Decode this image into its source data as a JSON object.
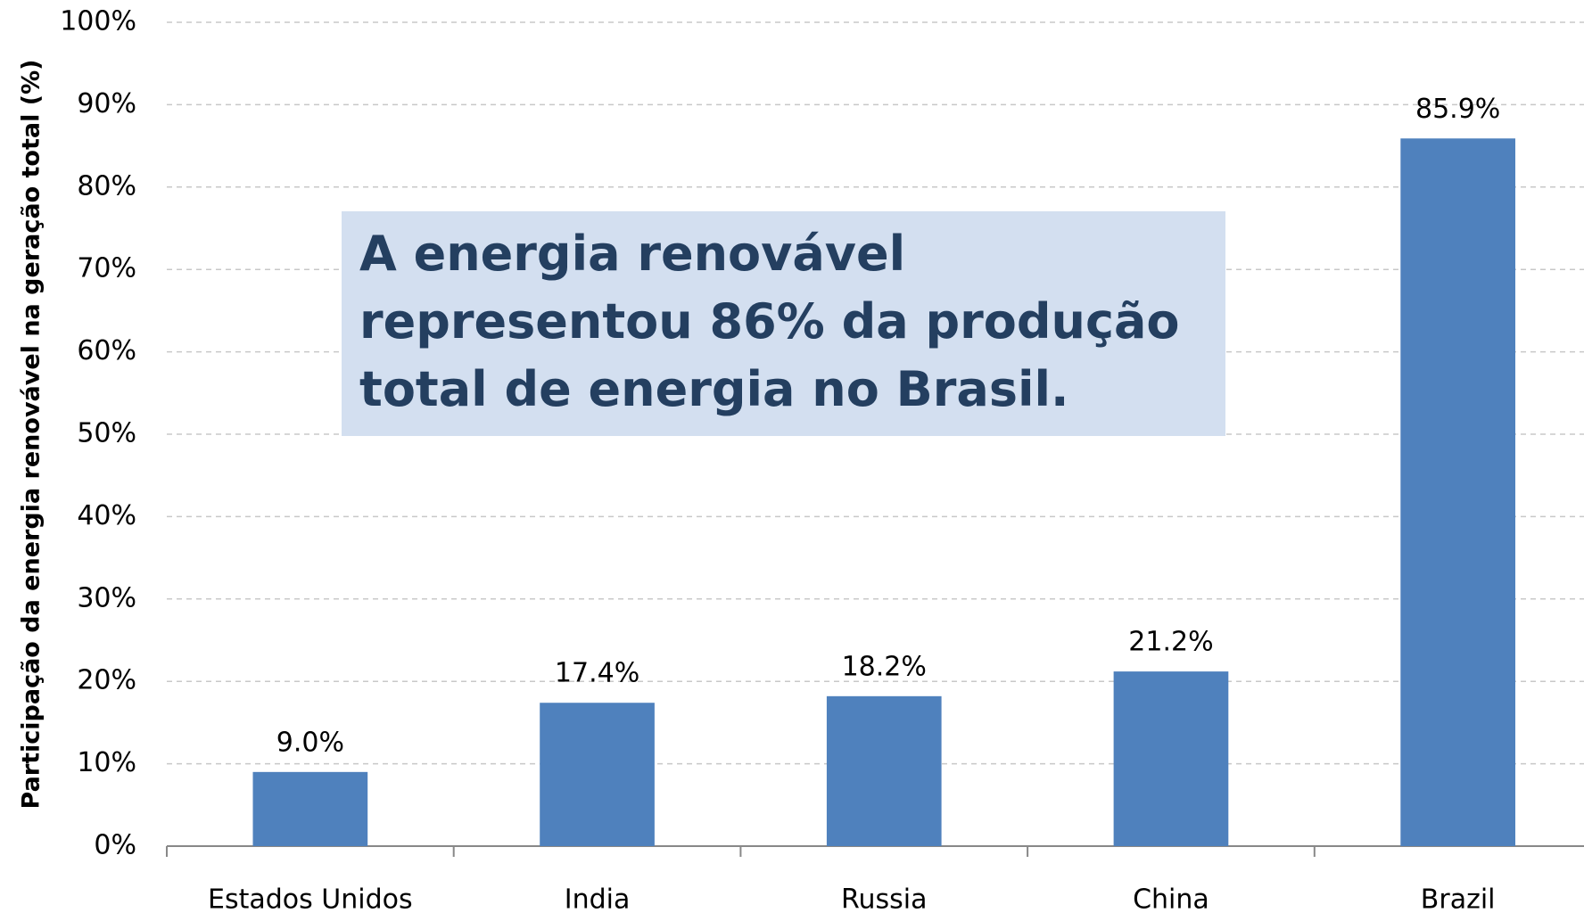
{
  "chart_data": {
    "type": "bar",
    "y_label": "Participação da energia renovável na geração total (%)",
    "annotation": "A energia renovável representou 86% da produção total de energia no Brasil.",
    "categories": [
      "Estados Unidos",
      "India",
      "Russia",
      "China",
      "Brazil"
    ],
    "values": [
      9.0,
      17.4,
      18.2,
      21.2,
      85.9
    ],
    "value_labels": [
      "9.0%",
      "17.4%",
      "18.2%",
      "21.2%",
      "85.9%"
    ],
    "color": "#4f81bd",
    "ylim": [
      0,
      100
    ],
    "yticks": [
      {
        "value": 0,
        "label": "0%"
      },
      {
        "value": 10,
        "label": "10%"
      },
      {
        "value": 20,
        "label": "20%"
      },
      {
        "value": 30,
        "label": "30%"
      },
      {
        "value": 40,
        "label": "40%"
      },
      {
        "value": 50,
        "label": "50%"
      },
      {
        "value": 60,
        "label": "60%"
      },
      {
        "value": 70,
        "label": "70%"
      },
      {
        "value": 80,
        "label": "80%"
      },
      {
        "value": 90,
        "label": "90%"
      },
      {
        "value": 100,
        "label": "100%"
      }
    ],
    "grid": true
  }
}
